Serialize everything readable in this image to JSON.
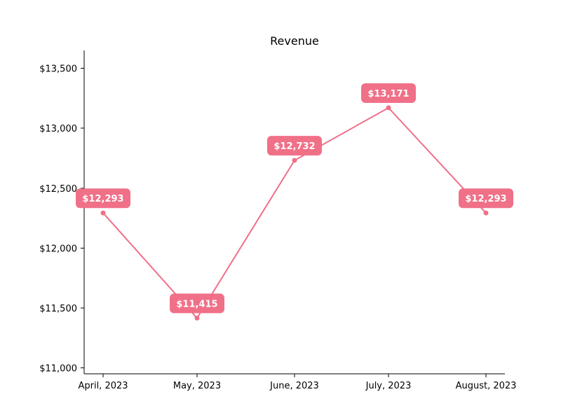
{
  "chart_data": {
    "type": "line",
    "title": "Revenue",
    "xlabel": "",
    "ylabel": "",
    "categories": [
      "April, 2023",
      "May, 2023",
      "June, 2023",
      "July, 2023",
      "August, 2023"
    ],
    "series": [
      {
        "values": [
          12293,
          11415,
          12732,
          13171,
          12293
        ],
        "data_labels": [
          "$12,293",
          "$11,415",
          "$12,732",
          "$13,171",
          "$12,293"
        ]
      }
    ],
    "ylim": [
      10950,
      13650
    ],
    "y_ticks": [
      11000,
      11500,
      12000,
      12500,
      13000,
      13500
    ],
    "y_tick_labels": [
      "$11,000",
      "$11,500",
      "$12,000",
      "$12,500",
      "$13,000",
      "$13,500"
    ],
    "grid": false,
    "legend": "none",
    "colors": {
      "series": "#f07088",
      "label_bg": "#f07088",
      "label_text": "#ffffff",
      "axis": "#000000"
    }
  }
}
